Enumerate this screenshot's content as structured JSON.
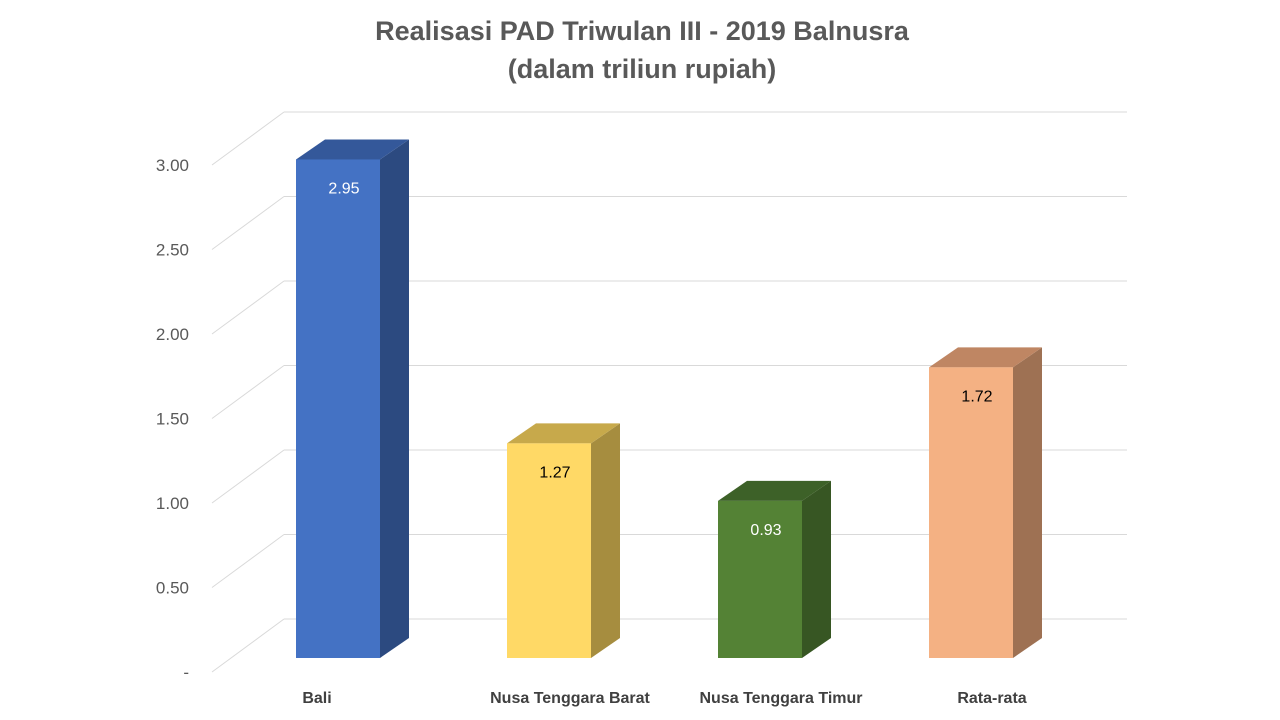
{
  "chart_data": {
    "type": "bar",
    "title": "Realisasi PAD Triwulan III - 2019 Balnusra",
    "subtitle": "(dalam triliun rupiah)",
    "categories": [
      "Bali",
      "Nusa Tenggara Barat",
      "Nusa Tenggara Timur",
      "Rata-rata"
    ],
    "values": [
      2.95,
      1.27,
      0.93,
      1.72
    ],
    "value_labels": [
      "2.95",
      "1.27",
      "0.93",
      "1.72"
    ],
    "y_ticks": [
      "-",
      "0.50",
      "1.00",
      "1.50",
      "2.00",
      "2.50",
      "3.00"
    ],
    "ylim": [
      0,
      3.0
    ],
    "grid": true,
    "legend": "none",
    "three_d": true,
    "bar_colors": [
      {
        "front": "#4472C4",
        "side": "#2C4A80",
        "top": "#34589A",
        "label": "#ffffff"
      },
      {
        "front": "#FFD966",
        "side": "#A68D3F",
        "top": "#C7A94B",
        "label": "#000000"
      },
      {
        "front": "#548235",
        "side": "#375623",
        "top": "#3D6128",
        "label": "#ffffff"
      },
      {
        "front": "#F4B183",
        "side": "#9E7153",
        "top": "#BF8663",
        "label": "#000000"
      }
    ],
    "gridline_color": "#D9D9D9"
  }
}
